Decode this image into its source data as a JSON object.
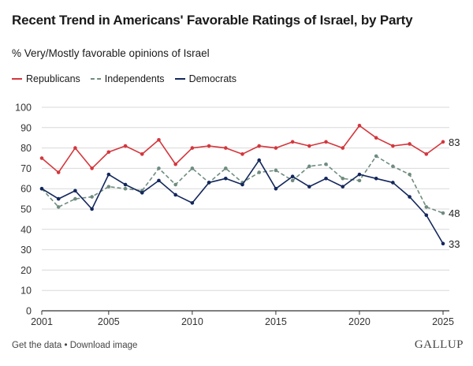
{
  "colors": {
    "republicans": "#d3373d",
    "independents": "#6f8c7e",
    "democrats": "#13275c",
    "grid": "#d9d9d9",
    "axis": "#333333"
  },
  "footer": {
    "get_data": "Get the data",
    "separator": "•",
    "download": "Download image"
  },
  "brand": "GALLUP",
  "chart_data": {
    "type": "line",
    "title": "Recent Trend in Americans' Favorable Ratings of Israel, by Party",
    "subtitle": "% Very/Mostly favorable opinions of Israel",
    "xlabel": "",
    "ylabel": "",
    "x": [
      2001,
      2002,
      2003,
      2004,
      2005,
      2006,
      2007,
      2008,
      2009,
      2010,
      2011,
      2012,
      2013,
      2014,
      2015,
      2016,
      2017,
      2018,
      2019,
      2020,
      2021,
      2022,
      2023,
      2024,
      2025
    ],
    "xticks": [
      "2001",
      "2005",
      "2010",
      "2015",
      "2020",
      "2025"
    ],
    "ylim": [
      0,
      100
    ],
    "yticks": [
      "0",
      "10",
      "20",
      "30",
      "40",
      "50",
      "60",
      "70",
      "80",
      "90",
      "100"
    ],
    "grid": true,
    "legend_position": "top-left",
    "series": [
      {
        "name": "Republicans",
        "style": "solid",
        "values": [
          75,
          68,
          80,
          70,
          78,
          81,
          77,
          84,
          72,
          80,
          81,
          80,
          77,
          81,
          80,
          83,
          81,
          83,
          80,
          91,
          85,
          81,
          82,
          77,
          83
        ],
        "end_label": "83"
      },
      {
        "name": "Independents",
        "style": "dashed",
        "values": [
          60,
          51,
          55,
          56,
          61,
          60,
          59,
          70,
          62,
          70,
          63,
          70,
          63,
          68,
          69,
          64,
          71,
          72,
          65,
          64,
          76,
          71,
          67,
          51,
          48
        ],
        "end_label": "48"
      },
      {
        "name": "Democrats",
        "style": "solid",
        "values": [
          60,
          55,
          59,
          50,
          67,
          62,
          58,
          64,
          57,
          53,
          63,
          65,
          62,
          74,
          60,
          66,
          61,
          65,
          61,
          67,
          65,
          63,
          56,
          47,
          33
        ],
        "end_label": "33"
      }
    ]
  }
}
